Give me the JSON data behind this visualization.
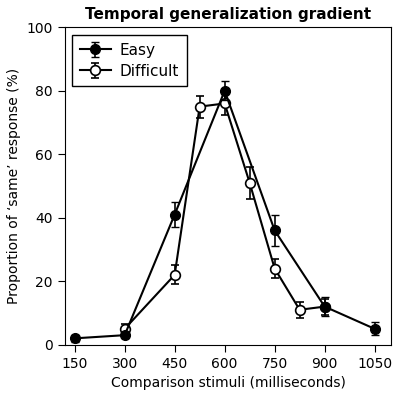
{
  "title": "Temporal generalization gradient",
  "xlabel": "Comparison stimuli (milliseconds)",
  "ylabel": "Proportion of ‘same’ response (%)",
  "easy_x": [
    150,
    300,
    450,
    600,
    750,
    900,
    1050
  ],
  "easy_y": [
    2,
    3,
    41,
    80,
    36,
    12,
    5
  ],
  "easy_err": [
    1.0,
    1.0,
    4.0,
    3.0,
    5.0,
    3.0,
    2.0
  ],
  "difficult_x": [
    300,
    450,
    525,
    600,
    675,
    750,
    825,
    900
  ],
  "difficult_y": [
    5,
    22,
    75,
    76,
    51,
    24,
    11,
    12
  ],
  "difficult_err": [
    1.5,
    3.0,
    3.5,
    3.5,
    5.0,
    3.0,
    2.5,
    2.5
  ],
  "ylim": [
    0,
    100
  ],
  "yticks": [
    0,
    20,
    40,
    60,
    80,
    100
  ],
  "xticks": [
    150,
    300,
    450,
    600,
    750,
    900,
    1050
  ],
  "bg_color": "#ffffff",
  "fig_bg_color": "#ffffff"
}
